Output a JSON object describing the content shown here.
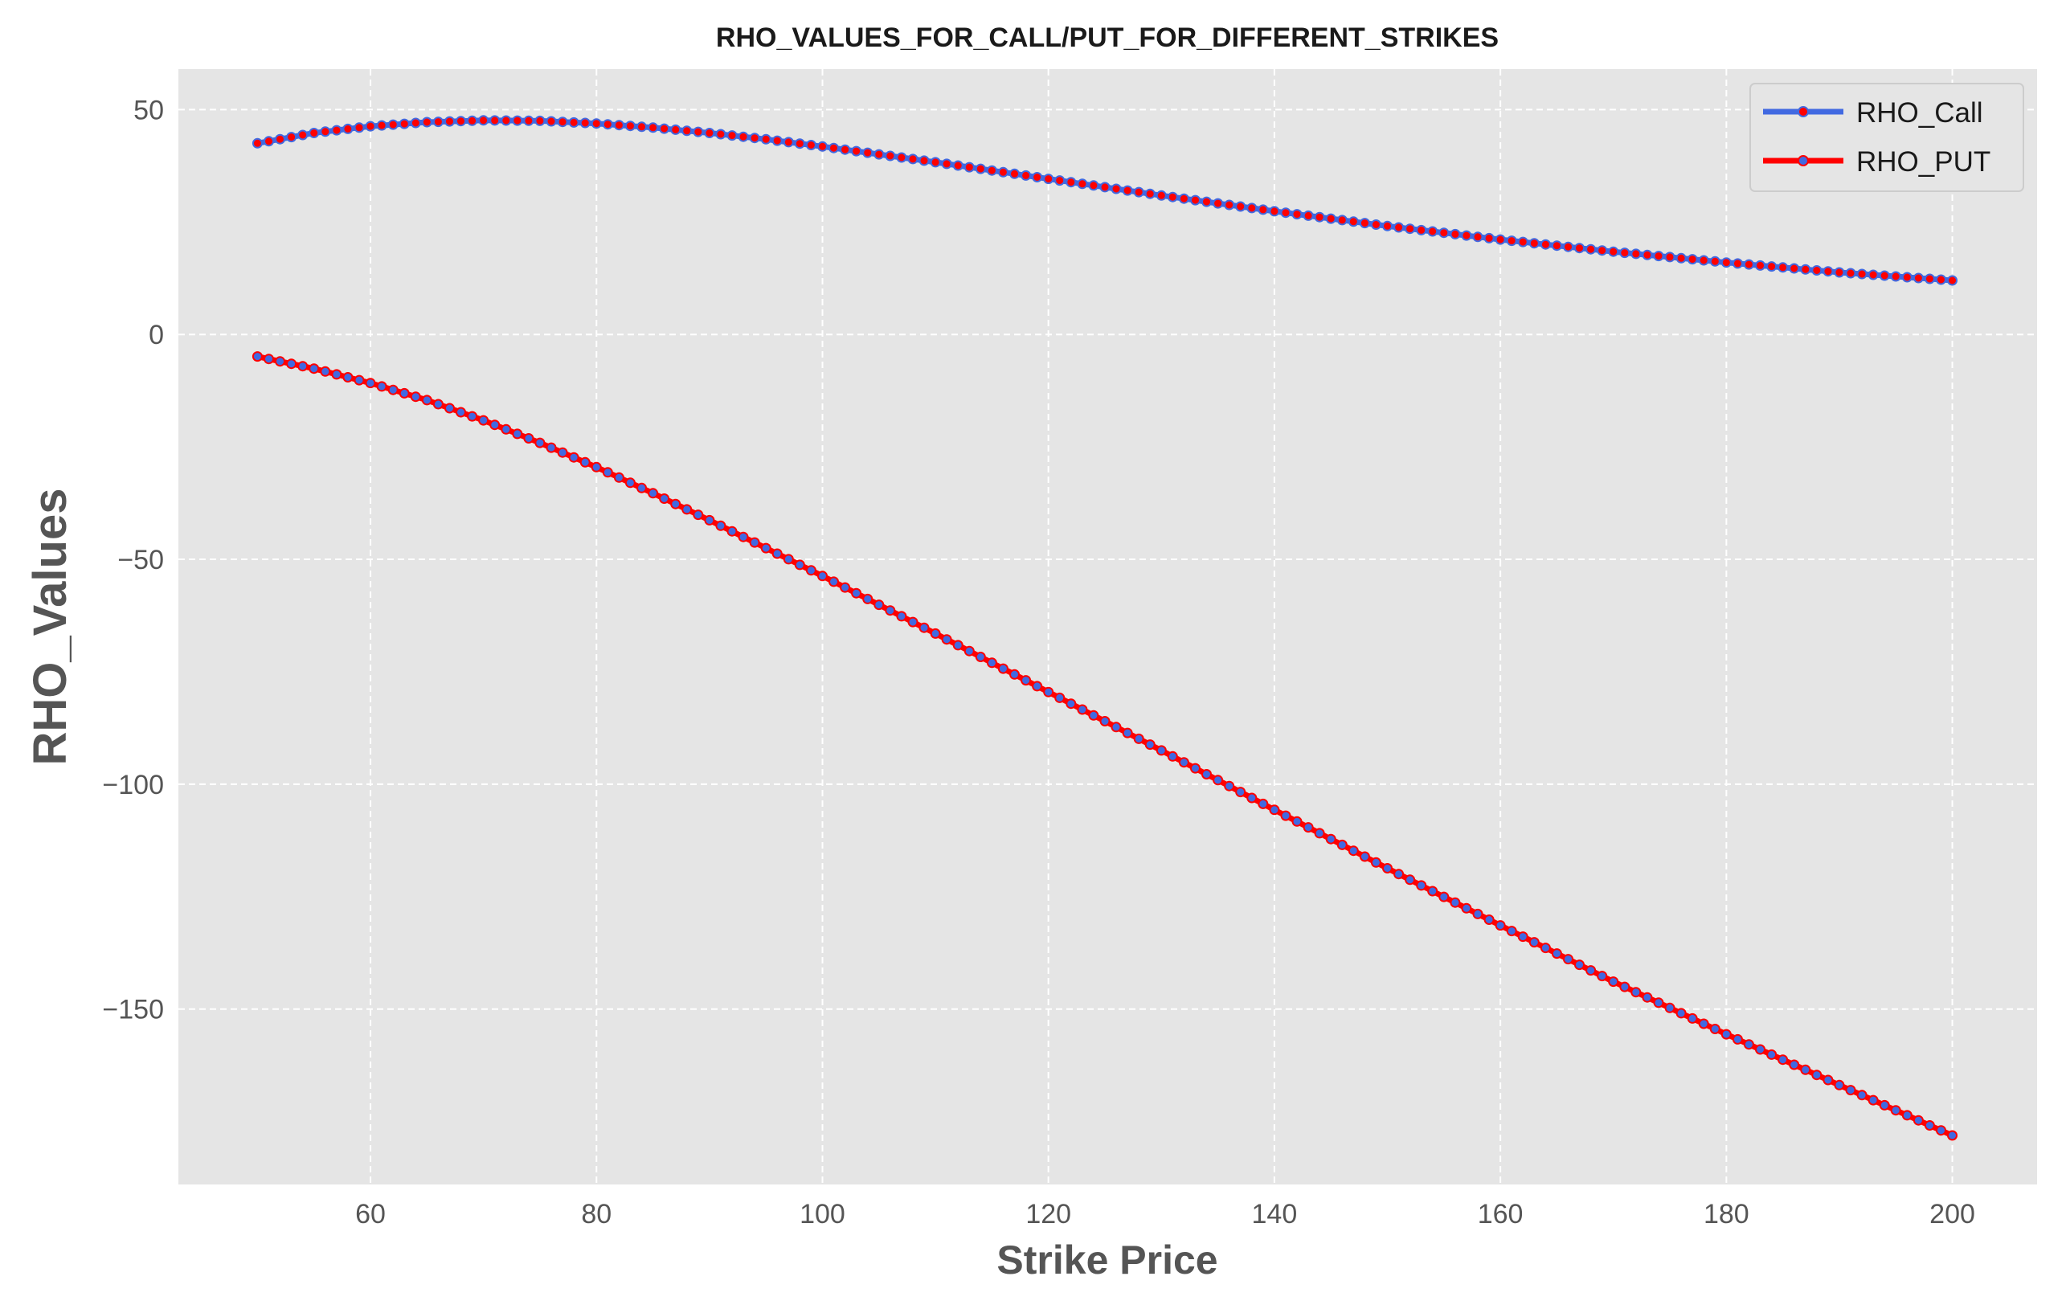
{
  "chart_data": {
    "type": "line",
    "title": "RHO_VALUES_FOR_CALL/PUT_FOR_DIFFERENT_STRIKES",
    "xlabel": "Strike Price",
    "ylabel": "RHO_Values",
    "xlim": [
      43,
      207.5
    ],
    "ylim": [
      -189,
      59
    ],
    "xticks": [
      60,
      80,
      100,
      120,
      140,
      160,
      180,
      200
    ],
    "xtick_labels": [
      "60",
      "80",
      "100",
      "120",
      "140",
      "160",
      "180",
      "200"
    ],
    "yticks": [
      50,
      0,
      -50,
      -100,
      -150
    ],
    "ytick_labels": [
      "50",
      "0",
      "−50",
      "−100",
      "−150"
    ],
    "grid": true,
    "legend_position": "top-right",
    "x": {
      "start": 50,
      "stop": 200,
      "step": 1
    },
    "series": [
      {
        "name": "RHO_Call",
        "color": "#4169e1",
        "marker_edge_color": "#4169e1",
        "marker_face_color": "#ff0000",
        "knots": [
          [
            50,
            42.5
          ],
          [
            55,
            44.8
          ],
          [
            60,
            46.3
          ],
          [
            65,
            47.2
          ],
          [
            70,
            47.6
          ],
          [
            75,
            47.5
          ],
          [
            80,
            46.9
          ],
          [
            85,
            46.0
          ],
          [
            90,
            44.8
          ],
          [
            95,
            43.4
          ],
          [
            100,
            41.8
          ],
          [
            110,
            38.3
          ],
          [
            120,
            34.6
          ],
          [
            130,
            30.9
          ],
          [
            140,
            27.4
          ],
          [
            150,
            24.1
          ],
          [
            160,
            21.1
          ],
          [
            170,
            18.4
          ],
          [
            180,
            16.0
          ],
          [
            190,
            13.8
          ],
          [
            200,
            12.0
          ]
        ]
      },
      {
        "name": "RHO_PUT",
        "color": "#ff0000",
        "marker_edge_color": "#ff0000",
        "marker_face_color": "#4169e1",
        "knots": [
          [
            50,
            -4.9
          ],
          [
            55,
            -7.6
          ],
          [
            60,
            -10.8
          ],
          [
            65,
            -14.6
          ],
          [
            70,
            -19.1
          ],
          [
            75,
            -24.1
          ],
          [
            80,
            -29.5
          ],
          [
            85,
            -35.3
          ],
          [
            90,
            -41.3
          ],
          [
            95,
            -47.5
          ],
          [
            100,
            -53.7
          ],
          [
            110,
            -66.5
          ],
          [
            120,
            -79.5
          ],
          [
            130,
            -92.5
          ],
          [
            140,
            -105.7
          ],
          [
            150,
            -118.7
          ],
          [
            160,
            -131.4
          ],
          [
            170,
            -143.9
          ],
          [
            180,
            -155.6
          ],
          [
            190,
            -166.9
          ],
          [
            200,
            -178.1
          ]
        ]
      }
    ]
  }
}
